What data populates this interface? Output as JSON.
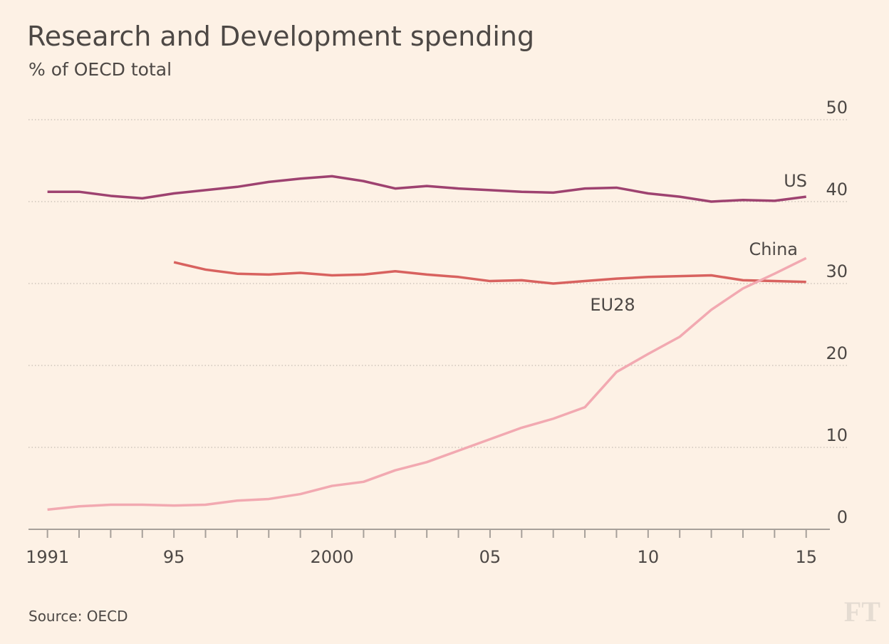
{
  "chart_data": {
    "type": "line",
    "title": "Research and Development spending",
    "subtitle": "% of OECD total",
    "source": "Source: OECD",
    "logo": "FT",
    "x": [
      1991,
      1992,
      1993,
      1994,
      1995,
      1996,
      1997,
      1998,
      1999,
      2000,
      2001,
      2002,
      2003,
      2004,
      2005,
      2006,
      2007,
      2008,
      2009,
      2010,
      2011,
      2012,
      2013,
      2014,
      2015
    ],
    "series": [
      {
        "name": "US",
        "color": "#9e4270",
        "values": [
          41.2,
          41.2,
          40.7,
          40.4,
          41.0,
          41.4,
          41.8,
          42.4,
          42.8,
          43.1,
          42.5,
          41.6,
          41.9,
          41.6,
          41.4,
          41.2,
          41.1,
          41.6,
          41.7,
          41.0,
          40.6,
          40.0,
          40.2,
          40.1,
          40.6
        ]
      },
      {
        "name": "EU28",
        "color": "#d8625f",
        "values": [
          null,
          null,
          null,
          null,
          32.6,
          31.7,
          31.2,
          31.1,
          31.3,
          31.0,
          31.1,
          31.5,
          31.1,
          30.8,
          30.3,
          30.4,
          30.0,
          30.3,
          30.6,
          30.8,
          30.9,
          31.0,
          30.4,
          30.3,
          30.2
        ]
      },
      {
        "name": "China",
        "color": "#f2a9b1",
        "values": [
          2.4,
          2.8,
          3.0,
          3.0,
          2.9,
          3.0,
          3.5,
          3.7,
          4.3,
          5.3,
          5.8,
          7.2,
          8.2,
          9.6,
          11.0,
          12.4,
          13.5,
          14.9,
          19.2,
          21.4,
          23.5,
          26.8,
          29.4,
          31.2,
          33.1
        ]
      }
    ],
    "xlim": [
      1990.4,
      2015.75
    ],
    "xticks": [
      1991,
      {
        "value": 1995,
        "label": "95"
      },
      2000,
      {
        "value": 2005,
        "label": "05"
      },
      {
        "value": 2010,
        "label": "10"
      },
      {
        "value": 2015,
        "label": "15"
      }
    ],
    "ylim": [
      0,
      50
    ],
    "yticks": [
      0,
      10,
      20,
      30,
      40,
      50
    ],
    "grid": true
  }
}
